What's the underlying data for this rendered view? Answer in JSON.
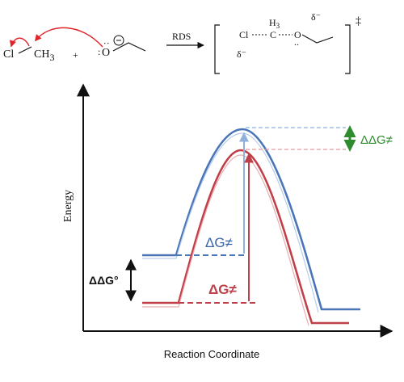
{
  "reaction": {
    "reactant1": {
      "cl": "Cl",
      "ch3": "CH",
      "ch3_sub": "3"
    },
    "plus": "+",
    "nucleophile": {
      "o": "O",
      "charge": "⊖",
      "lone_pairs": ":"
    },
    "arrow_label": "RDS",
    "transition_state": {
      "cl": "Cl",
      "c": "C",
      "h3": "H",
      "h3_sub": "3",
      "o": "O",
      "delta_left": "δ⁻",
      "delta_right": "δ⁻",
      "double_dagger": "‡"
    }
  },
  "diagram": {
    "y_axis_label": "Energy",
    "x_axis_label": "Reaction Coordinate",
    "delta_g_blue": "ΔG≠",
    "delta_g_red": "ΔG≠",
    "delta_delta_g_standard": "ΔΔG°",
    "delta_delta_g_barrier": "ΔΔG≠",
    "colors": {
      "blue": "#4a76b8",
      "blue_light": "#8fb1dc",
      "red": "#c0404a",
      "red_light": "#e29a9f",
      "green": "#2e8b2e",
      "arrow_red": "#e0242b",
      "axis": "#111111"
    }
  }
}
